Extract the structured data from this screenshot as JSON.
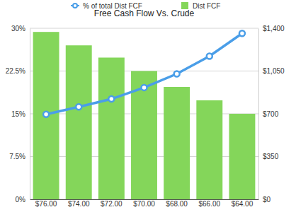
{
  "chart_data": {
    "type": "bar",
    "title": "Free Cash Flow Vs. Crude",
    "categories": [
      "$76.00",
      "$74.00",
      "$72.00",
      "$70.00",
      "$68.00",
      "$66.00",
      "$64.00"
    ],
    "series": [
      {
        "name": "% of total Dist FCF",
        "type": "line",
        "color": "#4a9ee8",
        "marker": "circle",
        "values": [
          14.9,
          16.2,
          17.6,
          19.6,
          22.0,
          25.1,
          29.1
        ]
      },
      {
        "name": "Dist FCF",
        "type": "bar",
        "color": "#84d65a",
        "axis": "y2",
        "values": [
          1370,
          1260,
          1160,
          1050,
          920,
          810,
          700
        ]
      }
    ],
    "ylim": [
      0,
      30
    ],
    "yticks": [
      {
        "value": 0,
        "label": "0%"
      },
      {
        "value": 7.5,
        "label": "7.5%"
      },
      {
        "value": 15,
        "label": "15%"
      },
      {
        "value": 22.5,
        "label": "22.5%"
      },
      {
        "value": 30,
        "label": "30%"
      }
    ],
    "y2lim": [
      0,
      1400
    ],
    "y2ticks": [
      {
        "value": 0,
        "label": "$0"
      },
      {
        "value": 350,
        "label": "$350"
      },
      {
        "value": 700,
        "label": "$700"
      },
      {
        "value": 1050,
        "label": "$1,050"
      },
      {
        "value": 1400,
        "label": "$1,400"
      }
    ],
    "grid": true,
    "legend": "top"
  }
}
